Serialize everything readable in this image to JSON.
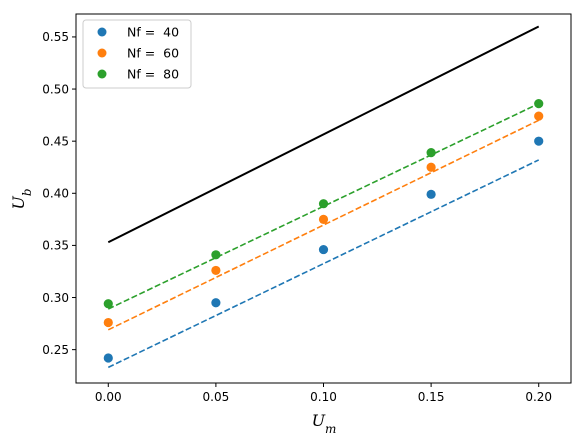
{
  "chart_data": {
    "type": "scatter",
    "xlabel": "U",
    "xlabel_sub": "m",
    "ylabel": "U",
    "ylabel_sub": "b",
    "xlim": [
      -0.015,
      0.215
    ],
    "ylim": [
      0.218,
      0.572
    ],
    "x_ticks": [
      0.0,
      0.05,
      0.1,
      0.15,
      0.2
    ],
    "x_tick_labels": [
      "0.00",
      "0.05",
      "0.10",
      "0.15",
      "0.20"
    ],
    "y_ticks": [
      0.25,
      0.3,
      0.35,
      0.4,
      0.45,
      0.5,
      0.55
    ],
    "y_tick_labels": [
      "0.25",
      "0.30",
      "0.35",
      "0.40",
      "0.45",
      "0.50",
      "0.55"
    ],
    "grid": false,
    "legend_position": "top-left",
    "series": [
      {
        "name": "Nf =  40",
        "color": "#1f77b4",
        "x": [
          0.0,
          0.05,
          0.1,
          0.15,
          0.2
        ],
        "y": [
          0.242,
          0.295,
          0.346,
          0.399,
          0.45
        ],
        "fit": {
          "x": [
            0.0,
            0.2
          ],
          "y": [
            0.233,
            0.432
          ]
        }
      },
      {
        "name": "Nf =  60",
        "color": "#ff7f0e",
        "x": [
          0.0,
          0.05,
          0.1,
          0.15,
          0.2
        ],
        "y": [
          0.276,
          0.326,
          0.375,
          0.425,
          0.474
        ],
        "fit": {
          "x": [
            0.0,
            0.2
          ],
          "y": [
            0.269,
            0.47
          ]
        }
      },
      {
        "name": "Nf =  80",
        "color": "#2ca02c",
        "x": [
          0.0,
          0.05,
          0.1,
          0.15,
          0.2
        ],
        "y": [
          0.294,
          0.341,
          0.39,
          0.439,
          0.486
        ],
        "fit": {
          "x": [
            0.0,
            0.2
          ],
          "y": [
            0.289,
            0.486
          ]
        }
      }
    ],
    "reference_line": {
      "color": "#000000",
      "x": [
        0.0,
        0.2
      ],
      "y": [
        0.353,
        0.56
      ]
    }
  }
}
